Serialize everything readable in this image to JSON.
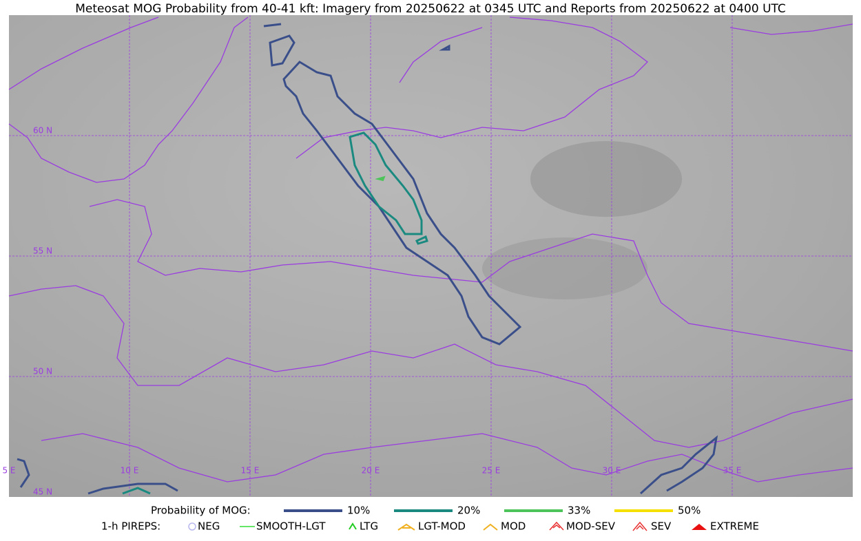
{
  "title": "Meteosat MOG Probability from 40-41 kft: Imagery from 20250622 at 0345 UTC and Reports from 20250622 at 0400 UTC",
  "map": {
    "lat_labels": [
      "60 N",
      "55 N",
      "50 N",
      "45 N"
    ],
    "lon_labels": [
      "5 E",
      "10 E",
      "15 E",
      "20 E",
      "25 E",
      "30 E",
      "35 E"
    ]
  },
  "legend": {
    "probability": {
      "label": "Probability of MOG:",
      "items": [
        {
          "label": "10%",
          "color": "#3a4f8a"
        },
        {
          "label": "20%",
          "color": "#1a8a80"
        },
        {
          "label": "33%",
          "color": "#4cc45a"
        },
        {
          "label": "50%",
          "color": "#f5e000"
        }
      ]
    },
    "pireps": {
      "label": "1-h PIREPS:",
      "items": [
        {
          "label": "NEG",
          "color": "#b8b8f0"
        },
        {
          "label": "SMOOTH-LGT",
          "color": "#33dd33"
        },
        {
          "label": "LTG",
          "color": "#22cc22"
        },
        {
          "label": "LGT-MOD",
          "color": "#f0b020"
        },
        {
          "label": "MOD",
          "color": "#f0b020"
        },
        {
          "label": "MOD-SEV",
          "color": "#e83030"
        },
        {
          "label": "SEV",
          "color": "#e83030"
        },
        {
          "label": "EXTREME",
          "color": "#e81010"
        }
      ]
    }
  }
}
